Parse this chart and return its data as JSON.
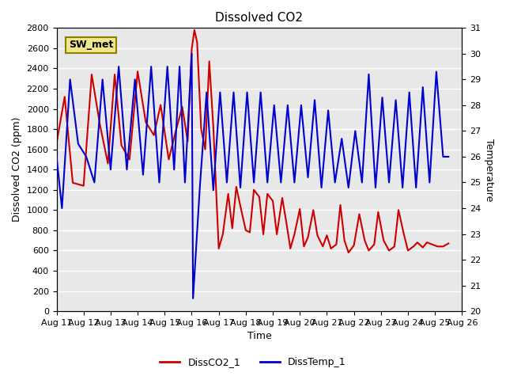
{
  "title": "Dissolved CO2",
  "xlabel": "Time",
  "ylabel_left": "Dissolved CO2 (ppm)",
  "ylabel_right": "Temperature",
  "annotation": "SW_met",
  "x_tick_labels": [
    "Aug 11",
    "Aug 12",
    "Aug 13",
    "Aug 14",
    "Aug 15",
    "Aug 16",
    "Aug 17",
    "Aug 18",
    "Aug 19",
    "Aug 20",
    "Aug 21",
    "Aug 22",
    "Aug 23",
    "Aug 24",
    "Aug 25",
    "Aug 26"
  ],
  "ylim_left": [
    0,
    2800
  ],
  "ylim_right": [
    20.0,
    31.0
  ],
  "background_color": "#e8e8e8",
  "grid_color": "white",
  "co2_color": "#cc0000",
  "temp_color": "#0000cc",
  "legend_co2": "DissCO2_1",
  "legend_temp": "DissTemp_1",
  "co2_x": [
    0,
    0.3,
    0.6,
    1.0,
    1.3,
    1.6,
    1.9,
    2.15,
    2.4,
    2.7,
    3.0,
    3.3,
    3.6,
    3.85,
    4.15,
    4.4,
    4.65,
    4.85,
    5.0,
    5.1,
    5.2,
    5.35,
    5.5,
    5.65,
    5.8,
    6.0,
    6.15,
    6.35,
    6.5,
    6.65,
    6.8,
    7.0,
    7.15,
    7.3,
    7.5,
    7.65,
    7.8,
    8.0,
    8.15,
    8.35,
    8.5,
    8.65,
    8.8,
    9.0,
    9.15,
    9.3,
    9.5,
    9.65,
    9.85,
    10.0,
    10.15,
    10.35,
    10.5,
    10.65,
    10.8,
    11.0,
    11.2,
    11.4,
    11.55,
    11.75,
    11.9,
    12.1,
    12.3,
    12.5,
    12.65,
    12.85,
    13.0,
    13.2,
    13.35,
    13.55,
    13.7,
    13.9,
    14.1,
    14.3,
    14.5
  ],
  "co2_y": [
    1660,
    2120,
    1270,
    1240,
    2340,
    1850,
    1460,
    2340,
    1640,
    1500,
    2370,
    1870,
    1740,
    2040,
    1500,
    1770,
    2020,
    1680,
    2590,
    2780,
    2660,
    1800,
    1600,
    2470,
    1820,
    620,
    760,
    1160,
    820,
    1230,
    1040,
    800,
    780,
    1200,
    1130,
    760,
    1160,
    1090,
    760,
    1120,
    880,
    620,
    760,
    1010,
    640,
    730,
    1000,
    750,
    640,
    750,
    620,
    660,
    1050,
    700,
    580,
    650,
    960,
    700,
    600,
    660,
    980,
    700,
    600,
    640,
    1000,
    760,
    600,
    640,
    680,
    630,
    680,
    660,
    640,
    640,
    670
  ],
  "temp_x": [
    0,
    0.2,
    0.5,
    0.8,
    1.1,
    1.4,
    1.7,
    2.0,
    2.3,
    2.6,
    2.9,
    3.2,
    3.5,
    3.8,
    4.1,
    4.35,
    4.55,
    4.75,
    5.0,
    5.05,
    5.3,
    5.55,
    5.8,
    6.05,
    6.3,
    6.55,
    6.8,
    7.05,
    7.3,
    7.55,
    7.8,
    8.05,
    8.3,
    8.55,
    8.8,
    9.05,
    9.3,
    9.55,
    9.8,
    10.05,
    10.3,
    10.55,
    10.8,
    11.05,
    11.3,
    11.55,
    11.8,
    12.05,
    12.3,
    12.55,
    12.8,
    13.05,
    13.3,
    13.55,
    13.8,
    14.05,
    14.3,
    14.5
  ],
  "temp_y": [
    26.0,
    24.0,
    29.0,
    26.5,
    26.0,
    25.0,
    29.0,
    25.5,
    29.5,
    25.5,
    29.0,
    25.3,
    29.5,
    25.0,
    29.5,
    25.5,
    29.5,
    25.0,
    30.0,
    20.5,
    24.8,
    28.5,
    24.7,
    28.5,
    25.0,
    28.5,
    24.8,
    28.5,
    25.0,
    28.5,
    25.0,
    28.0,
    25.0,
    28.0,
    25.0,
    28.0,
    25.2,
    28.2,
    24.8,
    27.8,
    25.0,
    26.7,
    24.8,
    27.0,
    25.0,
    29.2,
    24.8,
    28.3,
    25.0,
    28.2,
    24.8,
    28.5,
    24.8,
    28.7,
    25.0,
    29.3,
    26.0,
    26.0
  ]
}
